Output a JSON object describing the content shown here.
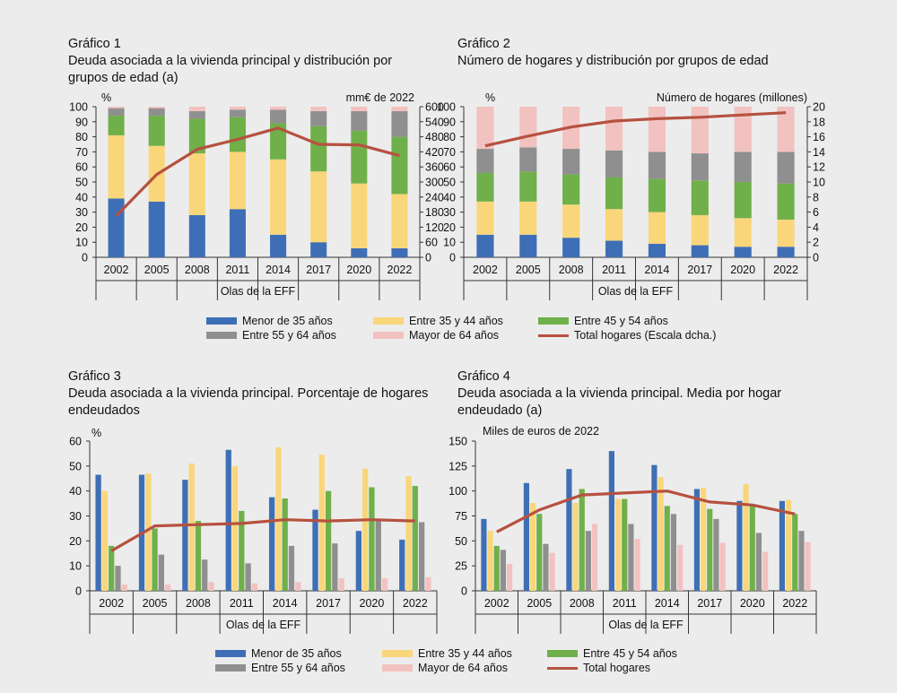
{
  "colors": {
    "menor35": "#3e6fb6",
    "e35_44": "#f9d67a",
    "e45_54": "#6fb04a",
    "e55_64": "#8f8f8f",
    "mayor64": "#f2c2c0",
    "total": "#b6513f"
  },
  "legend": {
    "menor35": "Menor de 35 años",
    "e35_44": "Entre 35 y 44 años",
    "e45_54": "Entre 45 y 54 años",
    "e55_64": "Entre 55 y 64 años",
    "mayor64": "Mayor de 64 años",
    "total_dcha": "Total hogares (Escala dcha.)",
    "total": "Total hogares"
  },
  "panels": {
    "g1": {
      "num": "Gráfico 1",
      "title": "Deuda asociada a la vivienda principal y distribución por grupos de edad (a)"
    },
    "g2": {
      "num": "Gráfico 2",
      "title": "Número de hogares y distribución por grupos de edad"
    },
    "g3": {
      "num": "Gráfico 3",
      "title": "Deuda asociada a la vivienda principal. Porcentaje de hogares endeudados"
    },
    "g4": {
      "num": "Gráfico 4",
      "title": "Deuda asociada a la vivienda principal. Media por hogar endeudado (a)"
    }
  },
  "chart_data": [
    {
      "id": "g1",
      "type": "bar",
      "stacked": true,
      "categories": [
        "2002",
        "2005",
        "2008",
        "2011",
        "2014",
        "2017",
        "2020",
        "2022"
      ],
      "series": [
        {
          "name": "Menor de 35 años",
          "key": "menor35",
          "values": [
            39,
            37,
            28,
            32,
            15,
            10,
            6,
            6
          ]
        },
        {
          "name": "Entre 35 y 44 años",
          "key": "e35_44",
          "values": [
            42,
            37,
            41,
            38,
            50,
            47,
            43,
            36
          ]
        },
        {
          "name": "Entre 45 y 54 años",
          "key": "e45_54",
          "values": [
            13,
            20,
            23,
            23,
            24,
            30,
            35,
            38
          ]
        },
        {
          "name": "Entre 55 y 64 años",
          "key": "e55_64",
          "values": [
            5,
            5,
            5,
            5,
            9,
            10,
            13,
            17
          ]
        },
        {
          "name": "Mayor de 64 años",
          "key": "mayor64",
          "values": [
            1,
            1,
            3,
            2,
            2,
            3,
            3,
            3
          ]
        }
      ],
      "line": {
        "name": "Total hogares (Escala dcha.)",
        "values": [
          165,
          330,
          430,
          470,
          515,
          450,
          448,
          405
        ]
      },
      "ylim": [
        0,
        100
      ],
      "yticks": [
        "0",
        "10",
        "20",
        "30",
        "40",
        "50",
        "60",
        "70",
        "80",
        "90",
        "100"
      ],
      "y2lim": [
        0,
        600
      ],
      "y2ticks": [
        "0",
        "60",
        "120",
        "180",
        "240",
        "300",
        "360",
        "420",
        "480",
        "540",
        "600"
      ],
      "ylabel": "%",
      "y2label": "mm€ de 2022",
      "xlabel": "Olas de la EFF"
    },
    {
      "id": "g2",
      "type": "bar",
      "stacked": true,
      "categories": [
        "2002",
        "2005",
        "2008",
        "2011",
        "2014",
        "2017",
        "2020",
        "2022"
      ],
      "series": [
        {
          "name": "Menor de 35 años",
          "key": "menor35",
          "values": [
            15,
            15,
            13,
            11,
            9,
            8,
            7,
            7
          ]
        },
        {
          "name": "Entre 35 y 44 años",
          "key": "e35_44",
          "values": [
            22,
            22,
            22,
            21,
            21,
            20,
            19,
            18
          ]
        },
        {
          "name": "Entre 45 y 54 años",
          "key": "e45_54",
          "values": [
            19,
            20,
            20,
            21,
            22,
            23,
            24,
            24
          ]
        },
        {
          "name": "Entre 55 y 64 años",
          "key": "e55_64",
          "values": [
            16,
            16,
            17,
            18,
            18,
            18,
            20,
            21
          ]
        },
        {
          "name": "Mayor de 64 años",
          "key": "mayor64",
          "values": [
            28,
            27,
            28,
            29,
            30,
            31,
            30,
            30
          ]
        }
      ],
      "line": {
        "name": "Total hogares",
        "values": [
          14.8,
          16.1,
          17.3,
          18.1,
          18.4,
          18.6,
          18.9,
          19.2
        ]
      },
      "ylim": [
        0,
        100
      ],
      "yticks": [
        "0",
        "10",
        "20",
        "30",
        "40",
        "50",
        "60",
        "70",
        "80",
        "90",
        "100"
      ],
      "y2lim": [
        0,
        20
      ],
      "y2ticks": [
        "0",
        "2",
        "4",
        "6",
        "8",
        "10",
        "12",
        "14",
        "16",
        "18",
        "20"
      ],
      "ylabel": "%",
      "y2label": "Número de hogares (millones)",
      "xlabel": "Olas de la EFF"
    },
    {
      "id": "g3",
      "type": "bar",
      "stacked": false,
      "categories": [
        "2002",
        "2005",
        "2008",
        "2011",
        "2014",
        "2017",
        "2020",
        "2022"
      ],
      "series": [
        {
          "name": "Menor de 35 años",
          "key": "menor35",
          "values": [
            46.5,
            46.5,
            44.5,
            56.5,
            37.5,
            32.5,
            24.0,
            20.5
          ]
        },
        {
          "name": "Entre 35 y 44 años",
          "key": "e35_44",
          "values": [
            40.0,
            47.0,
            51.0,
            50.0,
            57.5,
            54.5,
            49.0,
            46.0
          ]
        },
        {
          "name": "Entre 45 y 54 años",
          "key": "e45_54",
          "values": [
            18.0,
            25.0,
            28.0,
            32.0,
            37.0,
            40.0,
            41.5,
            42.0
          ]
        },
        {
          "name": "Entre 55 y 64 años",
          "key": "e55_64",
          "values": [
            10.0,
            14.5,
            12.5,
            11.0,
            18.0,
            19.0,
            28.0,
            27.5
          ]
        },
        {
          "name": "Mayor de 64 años",
          "key": "mayor64",
          "values": [
            2.5,
            2.5,
            3.5,
            3.0,
            3.5,
            5.0,
            5.0,
            5.5
          ]
        }
      ],
      "line": {
        "name": "Total hogares",
        "values": [
          16.0,
          26.0,
          26.5,
          27.0,
          28.5,
          28.0,
          28.5,
          28.0
        ]
      },
      "ylim": [
        0,
        60
      ],
      "yticks": [
        "0",
        "10",
        "20",
        "30",
        "40",
        "50",
        "60"
      ],
      "ylabel": "%",
      "xlabel": "Olas de la EFF"
    },
    {
      "id": "g4",
      "type": "bar",
      "stacked": false,
      "categories": [
        "2002",
        "2005",
        "2008",
        "2011",
        "2014",
        "2017",
        "2020",
        "2022"
      ],
      "series": [
        {
          "name": "Menor de 35 años",
          "key": "menor35",
          "values": [
            72,
            108,
            122,
            140,
            126,
            102,
            90,
            90
          ]
        },
        {
          "name": "Entre 35 y 44 años",
          "key": "e35_44",
          "values": [
            60,
            88,
            88,
            92,
            114,
            103,
            107,
            91
          ]
        },
        {
          "name": "Entre 45 y 54 años",
          "key": "e45_54",
          "values": [
            45,
            77,
            102,
            92,
            85,
            82,
            85,
            77
          ]
        },
        {
          "name": "Entre 55 y 64 años",
          "key": "e55_64",
          "values": [
            41,
            47,
            60,
            67,
            77,
            72,
            58,
            60
          ]
        },
        {
          "name": "Mayor de 64 años",
          "key": "mayor64",
          "values": [
            27,
            38,
            67,
            52,
            46,
            48,
            39,
            49
          ]
        }
      ],
      "line": {
        "name": "Total hogares",
        "values": [
          59,
          81,
          96,
          98,
          100,
          89,
          86,
          77
        ]
      },
      "ylim": [
        0,
        150
      ],
      "yticks": [
        "0",
        "25",
        "50",
        "75",
        "100",
        "125",
        "150"
      ],
      "ylabel": "Miles de euros de 2022",
      "xlabel": "Olas de la EFF"
    }
  ]
}
